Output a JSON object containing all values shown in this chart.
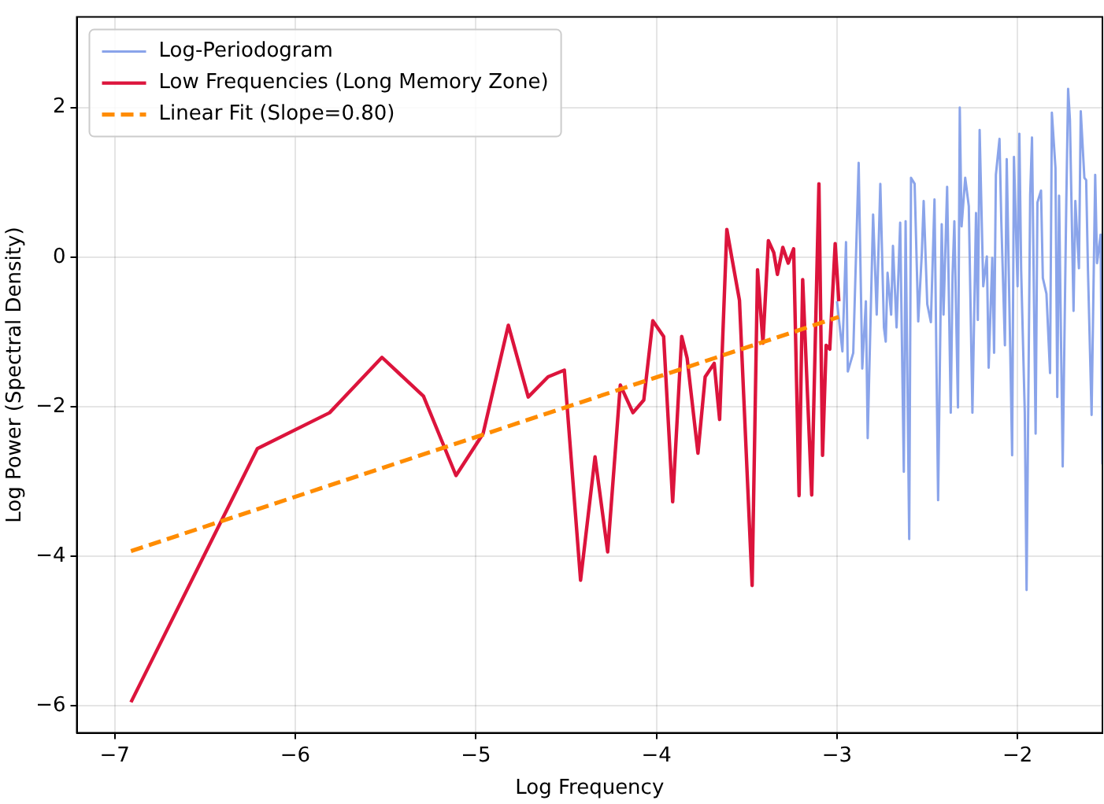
{
  "chart_data": {
    "type": "line",
    "xlabel": "Log Frequency",
    "ylabel": "Log Power (Spectral Density)",
    "xlim": [
      -7.21,
      -1.53
    ],
    "ylim": [
      -6.36,
      3.21
    ],
    "xticks": [
      -7,
      -6,
      -5,
      -4,
      -3,
      -2
    ],
    "yticks": [
      -6,
      -4,
      -2,
      0,
      2
    ],
    "grid": true,
    "legend": "top left",
    "marker": "none",
    "line_style": "solid",
    "series": [
      {
        "name": "Log-Periodogram",
        "color": "#8aa4ea",
        "x": [
          -3.0,
          -2.97,
          -2.95,
          -2.94,
          -2.91,
          -2.88,
          -2.86,
          -2.84,
          -2.83,
          -2.8,
          -2.78,
          -2.76,
          -2.74,
          -2.73,
          -2.72,
          -2.7,
          -2.69,
          -2.67,
          -2.65,
          -2.63,
          -2.62,
          -2.6,
          -2.59,
          -2.57,
          -2.55,
          -2.53,
          -2.52,
          -2.5,
          -2.48,
          -2.46,
          -2.44,
          -2.42,
          -2.41,
          -2.39,
          -2.37,
          -2.36,
          -2.35,
          -2.33,
          -2.32,
          -2.31,
          -2.29,
          -2.27,
          -2.25,
          -2.23,
          -2.22,
          -2.21,
          -2.19,
          -2.17,
          -2.16,
          -2.14,
          -2.13,
          -2.12,
          -2.1,
          -2.09,
          -2.07,
          -2.06,
          -2.03,
          -2.02,
          -2.0,
          -1.99,
          -1.98,
          -1.96,
          -1.95,
          -1.93,
          -1.92,
          -1.9,
          -1.89,
          -1.87,
          -1.86,
          -1.84,
          -1.82,
          -1.81,
          -1.79,
          -1.78,
          -1.77,
          -1.75,
          -1.73,
          -1.72,
          -1.71,
          -1.69,
          -1.68,
          -1.66,
          -1.65,
          -1.63,
          -1.62,
          -1.61,
          -1.59,
          -1.57,
          -1.56,
          -1.54,
          -1.53
        ],
        "values": [
          -0.59,
          -1.26,
          0.2,
          -1.53,
          -1.28,
          1.26,
          -1.49,
          -0.59,
          -2.42,
          0.57,
          -0.77,
          0.98,
          -0.94,
          -1.13,
          -0.21,
          -0.77,
          0.15,
          -0.94,
          0.46,
          -2.87,
          0.48,
          -3.77,
          1.06,
          0.98,
          -0.86,
          0.06,
          0.75,
          -0.63,
          -0.87,
          0.77,
          -3.25,
          0.44,
          -0.77,
          0.94,
          -2.08,
          -0.25,
          0.48,
          -2.01,
          2.0,
          0.41,
          1.06,
          0.68,
          -2.08,
          0.59,
          -0.84,
          1.7,
          -0.39,
          0.01,
          -1.48,
          -0.01,
          -1.28,
          1.1,
          1.58,
          0.48,
          -1.18,
          1.31,
          -2.65,
          1.34,
          -0.39,
          1.65,
          -0.18,
          -2.08,
          -4.45,
          0.84,
          1.6,
          -2.36,
          0.73,
          0.89,
          -0.28,
          -0.49,
          -1.55,
          1.93,
          1.19,
          -1.87,
          0.82,
          -2.8,
          0.75,
          2.25,
          1.84,
          -0.72,
          0.75,
          -0.15,
          1.95,
          1.06,
          1.03,
          -0.18,
          -2.11,
          1.1,
          -0.08,
          0.3,
          -2.77
        ]
      },
      {
        "name": "Low Frequencies (Long Memory Zone)",
        "color": "#dc143c",
        "x": [
          -6.91,
          -6.21,
          -5.81,
          -5.52,
          -5.29,
          -5.11,
          -4.96,
          -4.82,
          -4.71,
          -4.6,
          -4.51,
          -4.42,
          -4.34,
          -4.27,
          -4.2,
          -4.13,
          -4.07,
          -4.02,
          -3.96,
          -3.91,
          -3.86,
          -3.83,
          -3.77,
          -3.73,
          -3.68,
          -3.65,
          -3.61,
          -3.58,
          -3.54,
          -3.47,
          -3.44,
          -3.41,
          -3.38,
          -3.35,
          -3.33,
          -3.3,
          -3.27,
          -3.24,
          -3.21,
          -3.19,
          -3.14,
          -3.1,
          -3.08,
          -3.06,
          -3.04,
          -3.01,
          -2.99
        ],
        "values": [
          -5.95,
          -2.56,
          -2.08,
          -1.34,
          -1.86,
          -2.92,
          -2.36,
          -0.91,
          -1.87,
          -1.6,
          -1.51,
          -4.32,
          -2.67,
          -3.94,
          -1.71,
          -2.08,
          -1.91,
          -0.85,
          -1.06,
          -3.27,
          -1.06,
          -1.35,
          -2.62,
          -1.6,
          -1.42,
          -2.17,
          0.37,
          -0.04,
          -0.58,
          -4.39,
          -0.17,
          -1.15,
          0.22,
          0.06,
          -0.23,
          0.13,
          -0.08,
          0.11,
          -3.19,
          -0.3,
          -3.18,
          0.98,
          -2.65,
          -1.18,
          -1.23,
          0.18,
          -0.59
        ]
      },
      {
        "name": "Linear Fit (Slope=0.80)",
        "color": "#ff8c00",
        "line_style": "dashed",
        "x": [
          -6.91,
          -2.99
        ],
        "values": [
          -3.93,
          -0.8
        ]
      }
    ]
  }
}
